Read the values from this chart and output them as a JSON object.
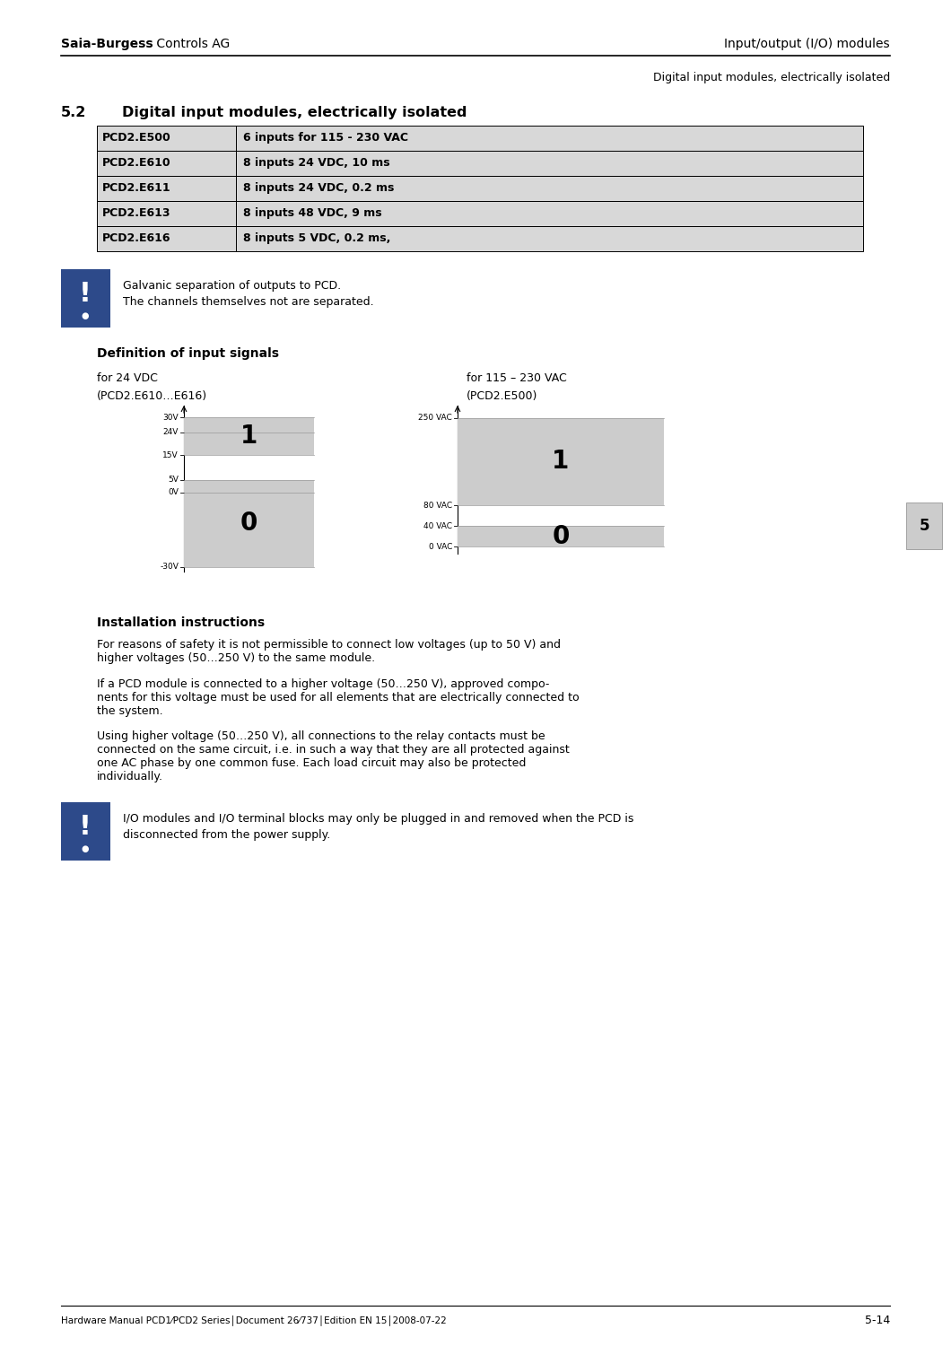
{
  "header_left_bold": "Saia-Burgess",
  "header_left_normal": " Controls AG",
  "header_right": "Input/output (I/O) modules",
  "subheader_right": "Digital input modules, electrically isolated",
  "section_number": "5.2",
  "section_title": "Digital input modules, electrically isolated",
  "table_rows": [
    {
      "col1": "PCD2.E500",
      "col2": "6 inputs for 115 - 230 VAC"
    },
    {
      "col1": "PCD2.E610",
      "col2": "8 inputs 24 VDC, 10 ms"
    },
    {
      "col1": "PCD2.E611",
      "col2": "8 inputs 24 VDC, 0.2 ms"
    },
    {
      "col1": "PCD2.E613",
      "col2": "8 inputs 48 VDC, 9 ms"
    },
    {
      "col1": "PCD2.E616",
      "col2": "8 inputs 5 VDC, 0.2 ms,"
    }
  ],
  "warning_text_line1": "Galvanic separation of outputs to PCD.",
  "warning_text_line2": "The channels themselves not are separated.",
  "def_signals_title": "Definition of input signals",
  "left_chart_title1": "for 24 VDC",
  "left_chart_title2": "(PCD2.E610…E616)",
  "right_chart_title1": "for 115 – 230 VAC",
  "right_chart_title2": "(PCD2.E500)",
  "install_title": "Installation instructions",
  "install_para1": "For reasons of safety it is not permissible to connect low voltages (up to 50 V) and\nhigher voltages (50…250 V) to the same module.",
  "install_para2": "If a PCD module is connected to a higher voltage (50…250 V), approved compo-\nnents for this voltage must be used for all elements that are electrically connected to\nthe system.",
  "install_para3": "Using higher voltage (50…250 V), all connections to the relay contacts must be\nconnected on the same circuit, i.e. in such a way that they are all protected against\none AC phase by one common fuse. Each load circuit may also be protected\nindividually.",
  "warning2_text_line1": "I/O modules and I/O terminal blocks may only be plugged in and removed when the PCD is",
  "warning2_text_line2": "disconnected from the power supply.",
  "footer_left": "Hardware Manual PCD1⁄PCD2 Series│Document 26⁄737│Edition EN 15│2008-07-22",
  "footer_right": "5-14",
  "tab_bg": "#d8d8d8",
  "tab_border": "#000000",
  "warn_bg": "#2d4a8a",
  "page_bg": "#ffffff",
  "chart_fill": "#cccccc"
}
